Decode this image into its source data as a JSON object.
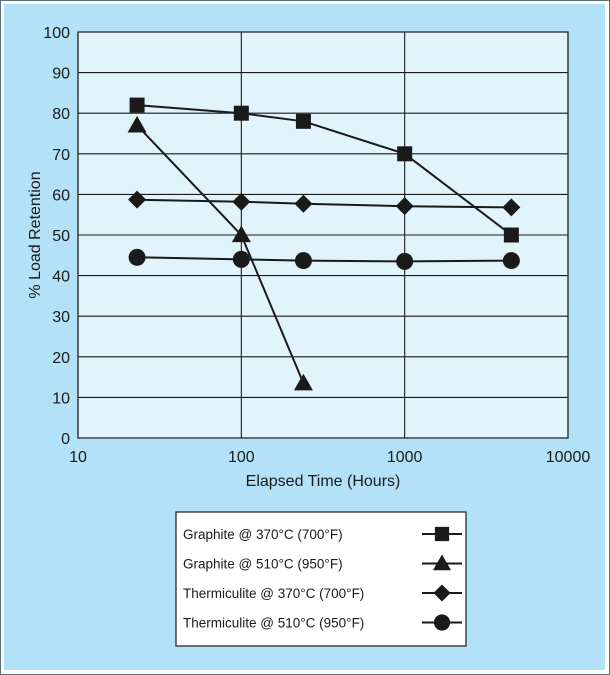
{
  "colors": {
    "background": "#b3e1f7",
    "plot_area": "#e1f3fb",
    "grid": "#1a1a1a",
    "series": "#1a1a1a",
    "legend_box": "#ffffff"
  },
  "chart_data": {
    "type": "line",
    "title": "",
    "xlabel": "Elapsed Time (Hours)",
    "ylabel": "% Load Retention",
    "xscale": "log",
    "xlim": [
      10,
      10000
    ],
    "ylim": [
      0,
      100
    ],
    "xticks": [
      "10",
      "100",
      "1000",
      "10000"
    ],
    "yticks": [
      "0",
      "10",
      "20",
      "30",
      "40",
      "50",
      "60",
      "70",
      "80",
      "90",
      "100"
    ],
    "grid": true,
    "legend_position": "bottom-center",
    "series": [
      {
        "name": "Graphite @ 370°C (700°F)",
        "marker": "square",
        "points": [
          [
            23,
            82
          ],
          [
            100,
            80
          ],
          [
            240,
            78
          ],
          [
            1000,
            70
          ],
          [
            4500,
            50
          ]
        ]
      },
      {
        "name": "Graphite @ 510°C (950°F)",
        "marker": "triangle",
        "points": [
          [
            23,
            77
          ],
          [
            100,
            50
          ],
          [
            240,
            13.5
          ]
        ]
      },
      {
        "name": "Thermiculite @ 370°C (700°F)",
        "marker": "diamond",
        "points": [
          [
            23,
            58.7
          ],
          [
            100,
            58.2
          ],
          [
            240,
            57.7
          ],
          [
            1000,
            57.1
          ],
          [
            4500,
            56.8
          ]
        ]
      },
      {
        "name": "Thermiculite @ 510°C (950°F)",
        "marker": "circle",
        "points": [
          [
            23,
            44.5
          ],
          [
            100,
            44
          ],
          [
            240,
            43.7
          ],
          [
            1000,
            43.5
          ],
          [
            4500,
            43.7
          ]
        ]
      }
    ]
  }
}
